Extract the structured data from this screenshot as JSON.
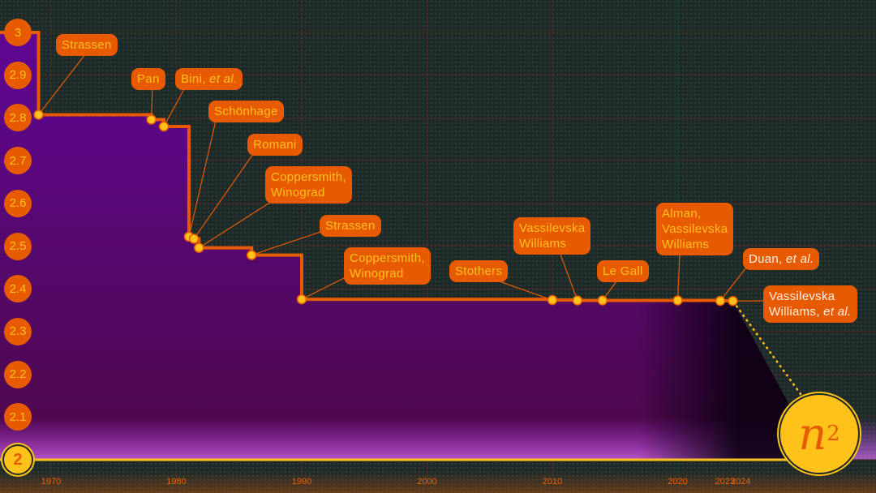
{
  "chart_data": {
    "type": "line",
    "step": true,
    "xlim": [
      1966,
      2030
    ],
    "ylim": [
      2,
      3
    ],
    "grid": true,
    "x_ticks": [
      "1970",
      "1980",
      "1990",
      "2000",
      "2010",
      "2020",
      "2023",
      "2024"
    ],
    "y_ticks": [
      "3",
      "2.9",
      "2.8",
      "2.7",
      "2.6",
      "2.5",
      "2.4",
      "2.3",
      "2.2",
      "2.1",
      "2"
    ],
    "start_value": 3,
    "points": [
      {
        "year": 1969,
        "value": 2.8074,
        "label_lines": [
          "Strassen"
        ],
        "label_em": ""
      },
      {
        "year": 1978,
        "value": 2.796,
        "label_lines": [
          "Pan"
        ],
        "label_em": ""
      },
      {
        "year": 1979,
        "value": 2.78,
        "label_lines": [
          "Bini, "
        ],
        "label_em": "et al."
      },
      {
        "year": 1981,
        "value": 2.522,
        "label_lines": [
          "Schönhage"
        ],
        "label_em": ""
      },
      {
        "year": 1981.4,
        "value": 2.517,
        "label_lines": [
          "Romani"
        ],
        "label_em": ""
      },
      {
        "year": 1981.8,
        "value": 2.496,
        "label_lines": [
          "Coppersmith,",
          "Winograd"
        ],
        "label_em": ""
      },
      {
        "year": 1986,
        "value": 2.479,
        "label_lines": [
          "Strassen"
        ],
        "label_em": ""
      },
      {
        "year": 1990,
        "value": 2.3755,
        "label_lines": [
          "Coppersmith,",
          "Winograd"
        ],
        "label_em": ""
      },
      {
        "year": 2010,
        "value": 2.3737,
        "label_lines": [
          "Stothers"
        ],
        "label_em": ""
      },
      {
        "year": 2012,
        "value": 2.3729,
        "label_lines": [
          "Vassilevska",
          "Williams"
        ],
        "label_em": ""
      },
      {
        "year": 2014,
        "value": 2.37286,
        "label_lines": [
          "Le Gall"
        ],
        "label_em": ""
      },
      {
        "year": 2020,
        "value": 2.37286,
        "label_lines": [
          "Alman,",
          "Vassilevska",
          "Williams"
        ],
        "label_em": ""
      },
      {
        "year": 2023.4,
        "value": 2.371866,
        "label_lines": [
          "Duan, "
        ],
        "label_em": "et al."
      },
      {
        "year": 2024.4,
        "value": 2.371552,
        "label_lines": [
          "Vassilevska",
          "Williams, "
        ],
        "label_em": "et al."
      }
    ],
    "target_label": "n",
    "target_exponent": "2",
    "colors": {
      "line": "#e85a00",
      "point": "#ffc21a",
      "fill_top": "#5a0a8a",
      "fill_bottom": "#4a0a4a",
      "label_bg": "#e85a00",
      "label_text": "#ffc21a",
      "label_text_recent": "#fff4e6"
    }
  }
}
